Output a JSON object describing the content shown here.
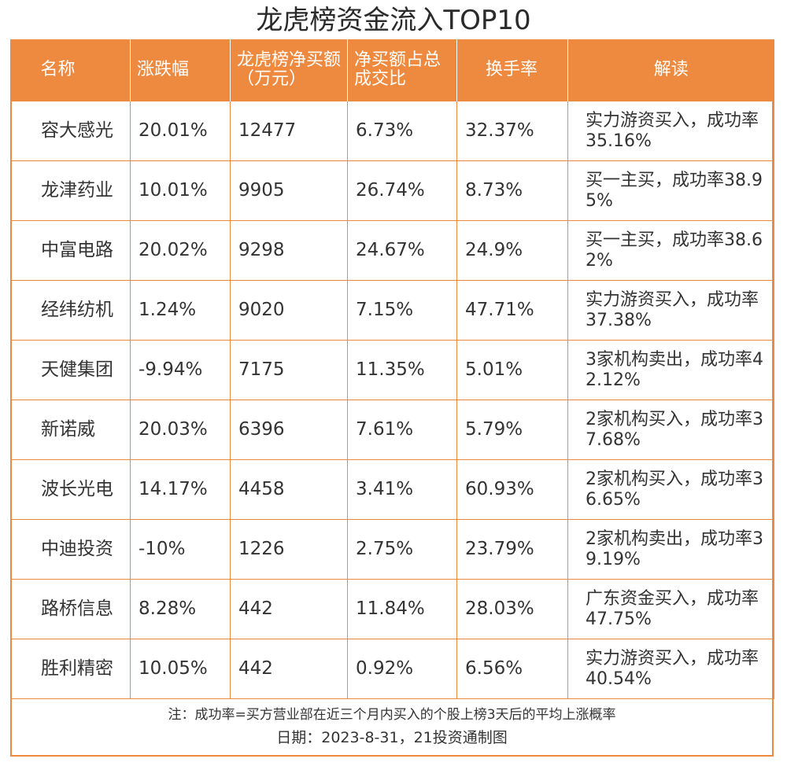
{
  "title": "龙虎榜资金流入TOP10",
  "columns": [
    "名称",
    "涨跌幅",
    "龙虎榜净买额（万元）",
    "净买额占总成交比",
    "换手率",
    "解读"
  ],
  "rows": [
    {
      "name": "容大感光",
      "change": "20.01%",
      "net_buy": "12477",
      "ratio": "6.73%",
      "turnover": "32.37%",
      "reading": "实力游资买入，成功率35.16%"
    },
    {
      "name": "龙津药业",
      "change": "10.01%",
      "net_buy": "9905",
      "ratio": "26.74%",
      "turnover": "8.73%",
      "reading": "买一主买，成功率38.95%"
    },
    {
      "name": "中富电路",
      "change": "20.02%",
      "net_buy": "9298",
      "ratio": "24.67%",
      "turnover": "24.9%",
      "reading": "买一主买，成功率38.62%"
    },
    {
      "name": "经纬纺机",
      "change": "1.24%",
      "net_buy": "9020",
      "ratio": "7.15%",
      "turnover": "47.71%",
      "reading": "实力游资买入，成功率37.38%"
    },
    {
      "name": "天健集团",
      "change": "-9.94%",
      "net_buy": "7175",
      "ratio": "11.35%",
      "turnover": "5.01%",
      "reading": "3家机构卖出，成功率42.12%"
    },
    {
      "name": "新诺威",
      "change": "20.03%",
      "net_buy": "6396",
      "ratio": "7.61%",
      "turnover": "5.79%",
      "reading": "2家机构买入，成功率37.68%"
    },
    {
      "name": "波长光电",
      "change": "14.17%",
      "net_buy": "4458",
      "ratio": "3.41%",
      "turnover": "60.93%",
      "reading": "2家机构买入，成功率36.65%"
    },
    {
      "name": "中迪投资",
      "change": "-10%",
      "net_buy": "1226",
      "ratio": "2.75%",
      "turnover": "23.79%",
      "reading": "2家机构卖出，成功率39.19%"
    },
    {
      "name": "路桥信息",
      "change": "8.28%",
      "net_buy": "442",
      "ratio": "11.84%",
      "turnover": "28.03%",
      "reading": "广东资金买入，成功率47.75%"
    },
    {
      "name": "胜利精密",
      "change": "10.05%",
      "net_buy": "442",
      "ratio": "0.92%",
      "turnover": "6.56%",
      "reading": "实力游资买入，成功率40.54%"
    }
  ],
  "note": "注：成功率=买方营业部在近三个月内买入的个股上榜3天后的平均上涨概率",
  "date_line": "日期：2023-8-31，21投资通制图",
  "colors": {
    "accent": "#ee8a3f",
    "text": "#333333"
  }
}
